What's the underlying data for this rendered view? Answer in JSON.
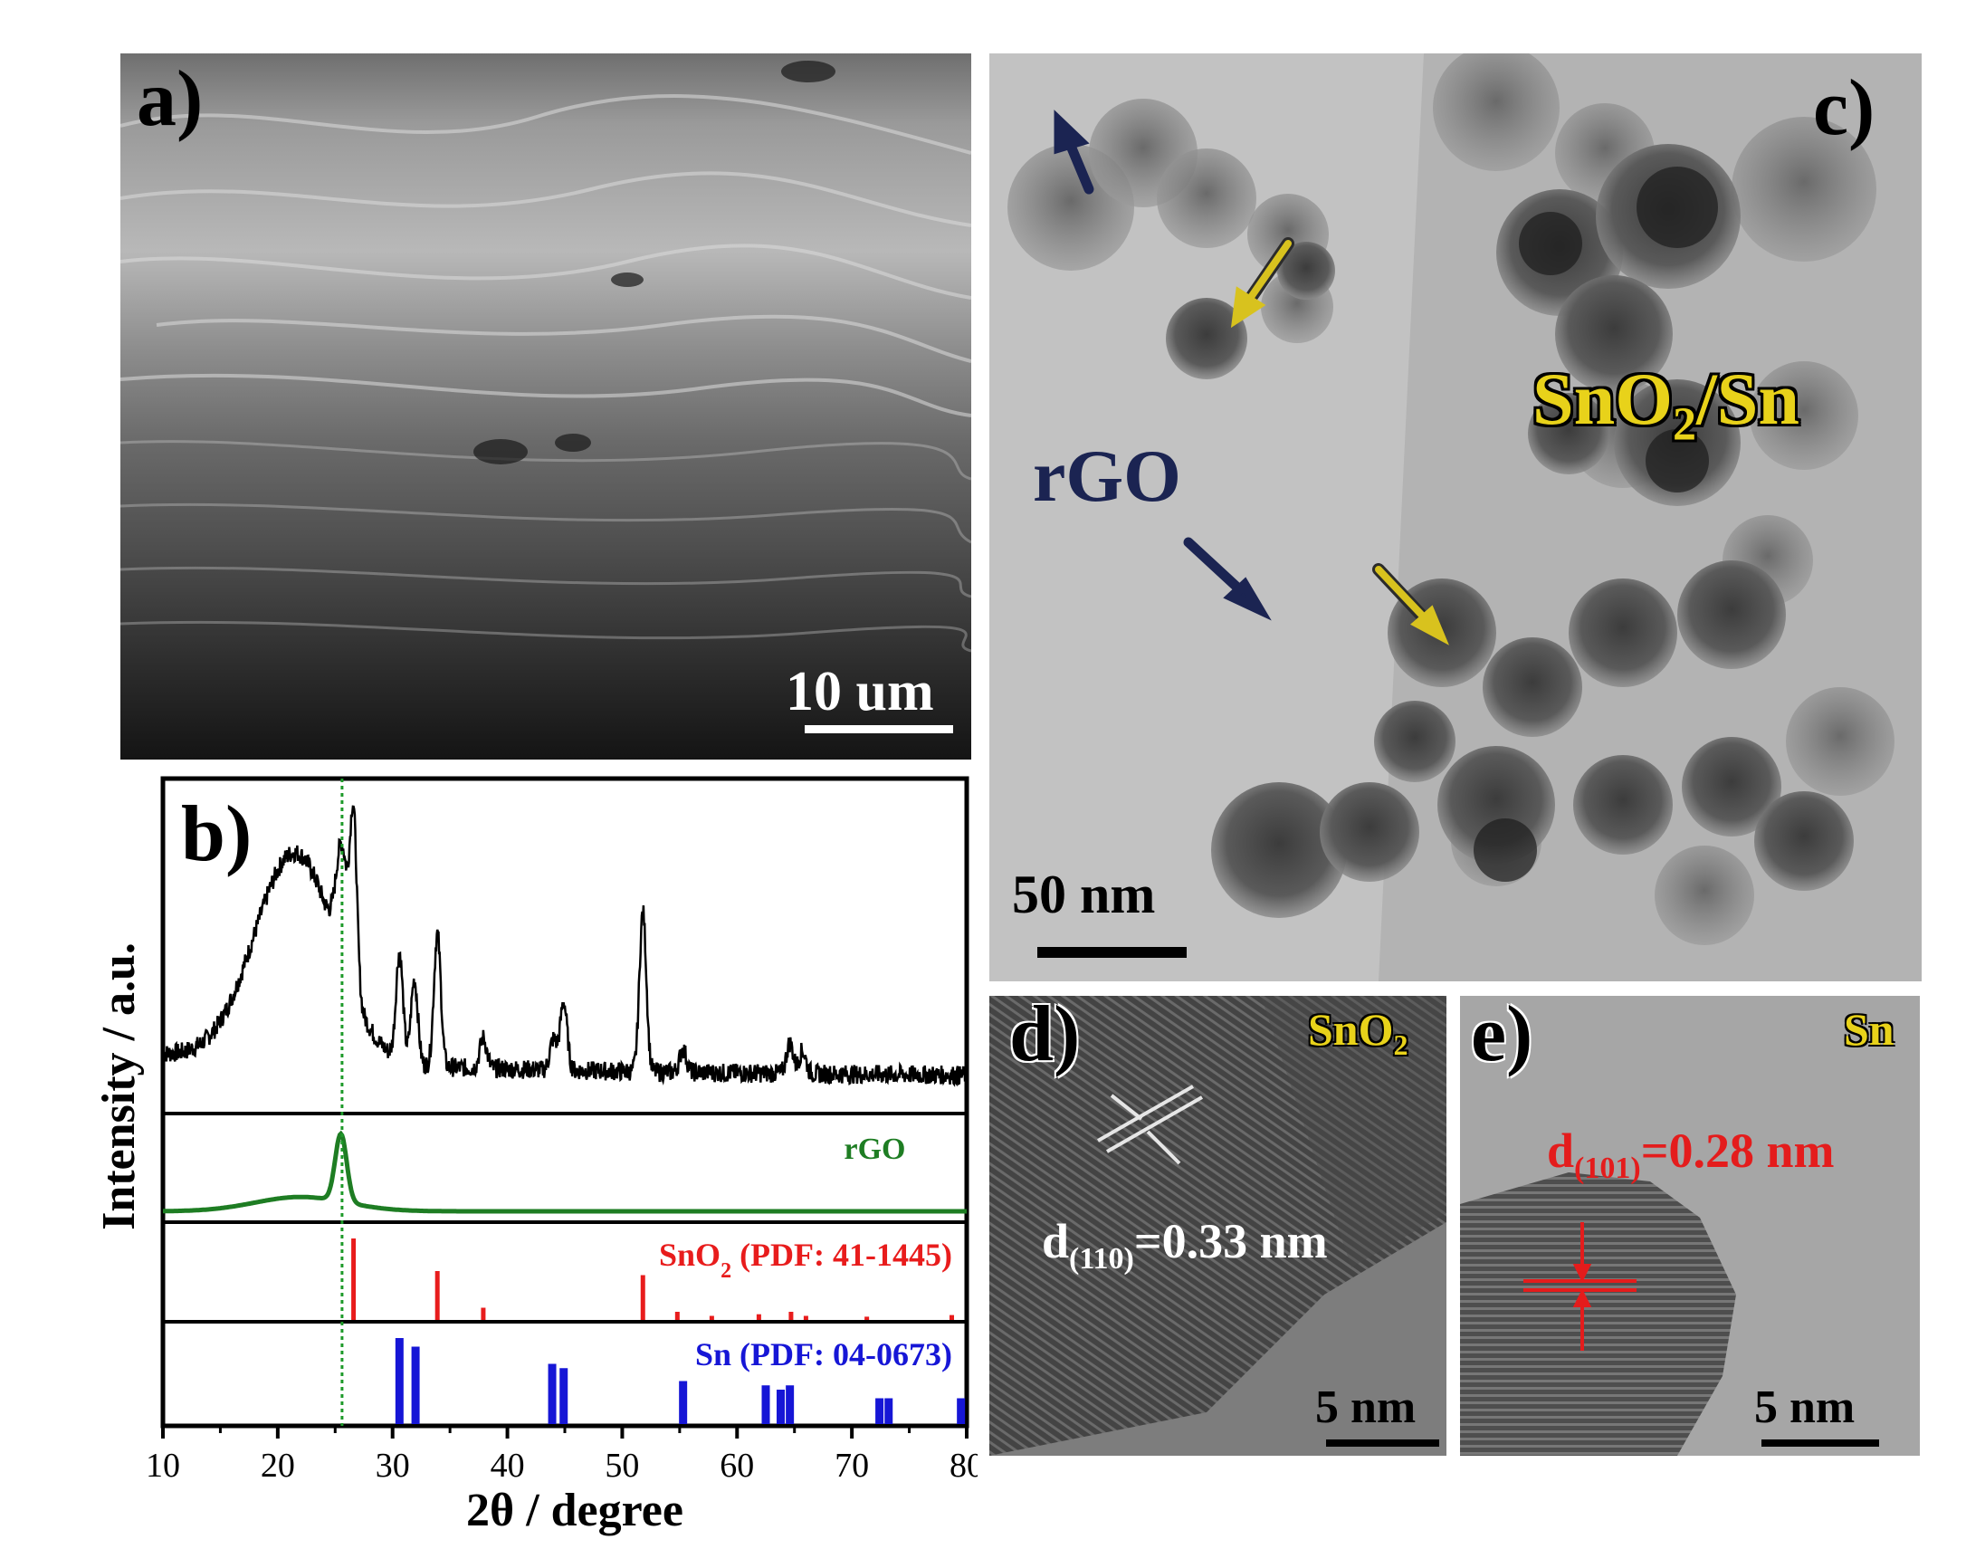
{
  "panel_a": {
    "label": "a)",
    "scale_bar": "10 um"
  },
  "panel_c": {
    "label": "c)",
    "scale_bar": "50 nm",
    "label_rgo": "rGO",
    "label_sno2": "SnO",
    "label_sno2_sub": "2",
    "label_sno2_suffix": "/Sn"
  },
  "panel_d": {
    "label": "d)",
    "phase": "SnO",
    "phase_sub": "2",
    "dspacing_prefix": "d",
    "dspacing_sub": "(110)",
    "dspacing_value": "=0.33 nm",
    "scale_bar": "5 nm"
  },
  "panel_e": {
    "label": "e)",
    "phase": "Sn",
    "dspacing_prefix": "d",
    "dspacing_sub": "(101)",
    "dspacing_value": "=0.28 nm",
    "scale_bar": "5 nm"
  },
  "colors": {
    "rgo_arrow": "#1b2452",
    "sno2_arrow": "#d8c21e",
    "xrd_sample": "#000000",
    "xrd_rgo": "#1e7d23",
    "ref_sno2": "#e81c1c",
    "ref_sn": "#1616d6",
    "guide": "#1e9a2a"
  },
  "chart_data": {
    "type": "line",
    "label": "b)",
    "xlabel": "2θ / degree",
    "ylabel": "Intensity / a.u.",
    "xlim": [
      10,
      80
    ],
    "xticks": [
      10,
      20,
      30,
      40,
      50,
      60,
      70,
      80
    ],
    "guide_line_x": 25.6,
    "sample_peaks": [
      {
        "x": 21.5,
        "h": 0.55,
        "w": 3.5
      },
      {
        "x": 25.6,
        "h": 0.3,
        "w": 0.5
      },
      {
        "x": 26.6,
        "h": 0.45,
        "w": 0.3
      },
      {
        "x": 30.6,
        "h": 0.28,
        "w": 0.3
      },
      {
        "x": 31.9,
        "h": 0.22,
        "w": 0.3
      },
      {
        "x": 33.9,
        "h": 0.35,
        "w": 0.3
      },
      {
        "x": 37.9,
        "h": 0.08,
        "w": 0.3
      },
      {
        "x": 44.0,
        "h": 0.08,
        "w": 0.3
      },
      {
        "x": 44.9,
        "h": 0.18,
        "w": 0.3
      },
      {
        "x": 51.8,
        "h": 0.42,
        "w": 0.3
      },
      {
        "x": 55.3,
        "h": 0.06,
        "w": 0.3
      },
      {
        "x": 64.6,
        "h": 0.08,
        "w": 0.3
      },
      {
        "x": 65.7,
        "h": 0.06,
        "w": 0.3
      }
    ],
    "rgo_pattern": {
      "name": "rGO",
      "broad": {
        "x": 22,
        "h": 0.18,
        "w": 4
      },
      "peak": {
        "x": 25.5,
        "h": 0.85,
        "w": 0.5
      }
    },
    "references": [
      {
        "name": "SnO",
        "name_sub": "2",
        "name_suffix": " (PDF: 41-1445)",
        "lines": [
          [
            26.6,
            1.0
          ],
          [
            33.9,
            0.6
          ],
          [
            37.9,
            0.15
          ],
          [
            51.8,
            0.55
          ],
          [
            54.8,
            0.1
          ],
          [
            57.8,
            0.05
          ],
          [
            61.9,
            0.07
          ],
          [
            64.7,
            0.1
          ],
          [
            66.0,
            0.05
          ],
          [
            71.3,
            0.04
          ],
          [
            78.7,
            0.06
          ]
        ]
      },
      {
        "name": "Sn (PDF: 04-0673)",
        "lines": [
          [
            30.6,
            1.0
          ],
          [
            32.0,
            0.9
          ],
          [
            43.9,
            0.7
          ],
          [
            44.9,
            0.65
          ],
          [
            55.3,
            0.5
          ],
          [
            62.5,
            0.45
          ],
          [
            63.8,
            0.4
          ],
          [
            64.6,
            0.45
          ],
          [
            72.4,
            0.3
          ],
          [
            73.2,
            0.3
          ],
          [
            79.5,
            0.3
          ]
        ]
      }
    ]
  }
}
